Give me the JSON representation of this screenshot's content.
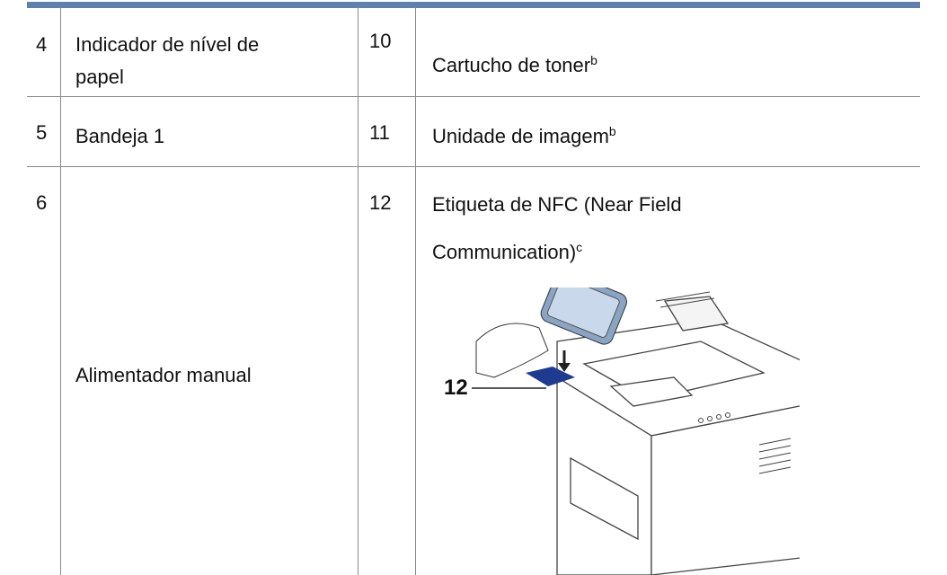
{
  "table": {
    "rows": [
      {
        "left_number": "4",
        "left_label": [
          "Indicador de nível de",
          "papel"
        ],
        "right_number": "10",
        "right_label": [
          "Cartucho de toner"
        ],
        "right_note": "b"
      },
      {
        "left_number": "5",
        "left_label": [
          "Bandeja 1"
        ],
        "right_number": "11",
        "right_label": [
          "Unidade de imagem"
        ],
        "right_note": "b"
      },
      {
        "left_number": "6",
        "left_label": [
          "Alimentador manual"
        ],
        "right_number": "12",
        "right_label": [
          "Etiqueta de NFC (Near Field",
          "Communication)"
        ],
        "right_note": "c"
      }
    ]
  },
  "illustration": {
    "callout": "12"
  }
}
